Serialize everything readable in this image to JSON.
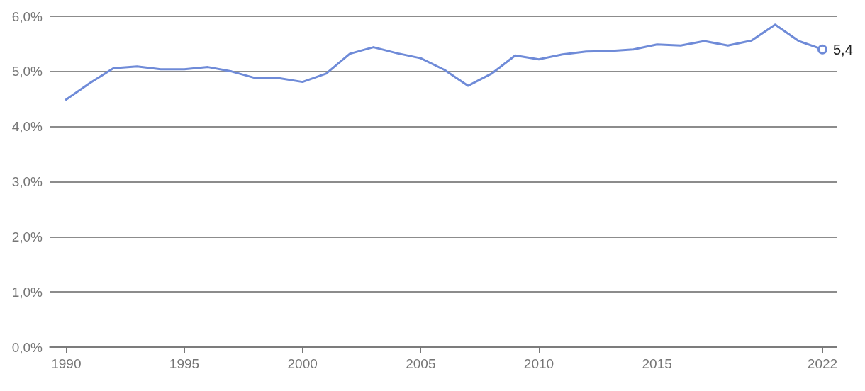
{
  "chart_data": {
    "type": "line",
    "x": [
      1990,
      1991,
      1992,
      1993,
      1994,
      1995,
      1996,
      1997,
      1998,
      1999,
      2000,
      2001,
      2002,
      2003,
      2004,
      2005,
      2006,
      2007,
      2008,
      2009,
      2010,
      2011,
      2012,
      2013,
      2014,
      2015,
      2016,
      2017,
      2018,
      2019,
      2020,
      2021,
      2022
    ],
    "series": [
      {
        "color": "#6f8bd8",
        "values": [
          4.49,
          4.79,
          5.06,
          5.09,
          5.04,
          5.04,
          5.08,
          5.0,
          4.88,
          4.88,
          4.81,
          4.96,
          5.32,
          5.44,
          5.33,
          5.24,
          5.03,
          4.74,
          4.96,
          5.29,
          5.22,
          5.31,
          5.36,
          5.37,
          5.4,
          5.49,
          5.47,
          5.55,
          5.47,
          5.56,
          5.85,
          5.55,
          5.4
        ],
        "value_labels": [
          null,
          null,
          null,
          null,
          null,
          null,
          null,
          null,
          null,
          null,
          null,
          null,
          null,
          null,
          null,
          null,
          null,
          null,
          null,
          null,
          null,
          null,
          null,
          null,
          null,
          null,
          null,
          null,
          null,
          null,
          null,
          null,
          "5,4"
        ]
      }
    ],
    "xlim": [
      1989.3,
      2022.6
    ],
    "xticks": [
      1990,
      1995,
      2000,
      2005,
      2010,
      2015,
      2022
    ],
    "ylim": [
      0,
      6
    ],
    "yticks": [
      {
        "value": 0,
        "label": "0,0%"
      },
      {
        "value": 1,
        "label": "1,0%"
      },
      {
        "value": 2,
        "label": "2,0%"
      },
      {
        "value": 3,
        "label": "3,0%"
      },
      {
        "value": 4,
        "label": "4,0%"
      },
      {
        "value": 5,
        "label": "5,0%"
      },
      {
        "value": 6,
        "label": "6,0%"
      }
    ],
    "grid": "y",
    "marker": "none",
    "line_style": "solid"
  }
}
